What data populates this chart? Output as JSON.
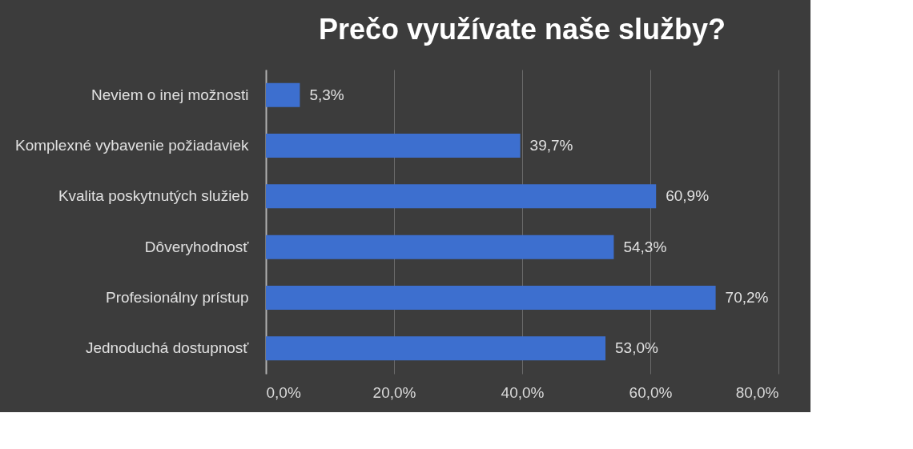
{
  "chart_data": {
    "type": "bar",
    "orientation": "horizontal",
    "title": "Prečo využívate naše služby?",
    "categories": [
      "Neviem o inej možnosti",
      "Komplexné vybavenie požiadaviek",
      "Kvalita poskytnutých služieb",
      "Dôveryhodnosť",
      "Profesionálny prístup",
      "Jednoduchá dostupnosť"
    ],
    "values": [
      5.3,
      39.7,
      60.9,
      54.3,
      70.2,
      53.0
    ],
    "value_labels": [
      "5,3%",
      "39,7%",
      "60,9%",
      "54,3%",
      "70,2%",
      "53,0%"
    ],
    "color": "#3d6fcf",
    "xlim": [
      0,
      80
    ],
    "xticks": [
      {
        "value": 0,
        "label": "0,0%"
      },
      {
        "value": 20,
        "label": "20,0%"
      },
      {
        "value": 40,
        "label": "40,0%"
      },
      {
        "value": 60,
        "label": "60,0%"
      },
      {
        "value": 80,
        "label": "80,0%"
      }
    ],
    "grid": "x"
  }
}
